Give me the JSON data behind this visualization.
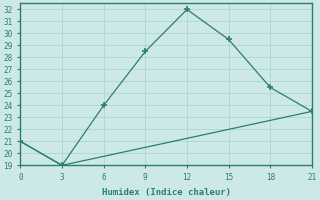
{
  "line1_x": [
    0,
    3,
    6,
    9,
    12,
    15,
    18,
    21
  ],
  "line1_y": [
    21,
    19,
    24,
    28.5,
    32,
    29.5,
    25.5,
    23.5
  ],
  "line2_x": [
    0,
    3,
    21
  ],
  "line2_y": [
    21,
    19,
    23.5
  ],
  "color": "#2e7d72",
  "bg_color": "#cce9e7",
  "grid_color": "#aed4d1",
  "xlabel": "Humidex (Indice chaleur)",
  "ylim": [
    19,
    32.5
  ],
  "xlim": [
    0,
    21
  ],
  "yticks": [
    19,
    20,
    21,
    22,
    23,
    24,
    25,
    26,
    27,
    28,
    29,
    30,
    31,
    32
  ],
  "xticks": [
    0,
    3,
    6,
    9,
    12,
    15,
    18,
    21
  ],
  "marker": "+"
}
